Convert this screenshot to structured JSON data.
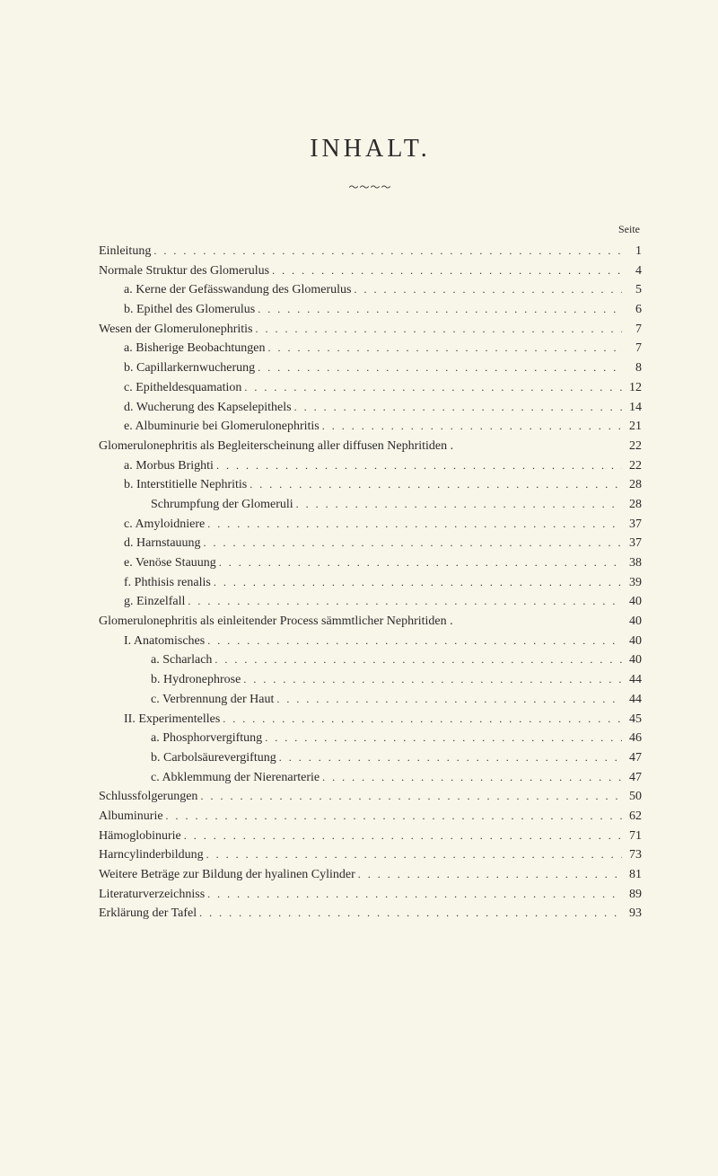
{
  "title": "INHALT.",
  "ornament": "～～～～",
  "page_header": "Seite",
  "colors": {
    "background": "#f8f5e9",
    "text": "#2a2a2a"
  },
  "typography": {
    "title_fontsize": 28,
    "body_fontsize": 14,
    "header_fontsize": 12,
    "font_family": "Georgia, Times New Roman, serif"
  },
  "entries": [
    {
      "label": "Einleitung",
      "page": "1",
      "indent": 0
    },
    {
      "label": "Normale Struktur des Glomerulus",
      "page": "4",
      "indent": 0
    },
    {
      "label": "a. Kerne der Gefässwandung des Glomerulus",
      "page": "5",
      "indent": 1
    },
    {
      "label": "b. Epithel des Glomerulus",
      "page": "6",
      "indent": 1
    },
    {
      "label": "Wesen der Glomerulonephritis",
      "page": "7",
      "indent": 0
    },
    {
      "label": "a. Bisherige Beobachtungen",
      "page": "7",
      "indent": 1
    },
    {
      "label": "b. Capillarkernwucherung",
      "page": "8",
      "indent": 1
    },
    {
      "label": "c. Epitheldesquamation",
      "page": "12",
      "indent": 1
    },
    {
      "label": "d. Wucherung des Kapselepithels",
      "page": "14",
      "indent": 1
    },
    {
      "label": "e. Albuminurie bei Glomerulonephritis",
      "page": "21",
      "indent": 1
    },
    {
      "label": "Glomerulonephritis als Begleiterscheinung aller diffusen Nephritiden .",
      "page": "22",
      "indent": 0,
      "nodots": true
    },
    {
      "label": "a. Morbus Brighti",
      "page": "22",
      "indent": 1
    },
    {
      "label": "b. Interstitielle Nephritis",
      "page": "28",
      "indent": 1
    },
    {
      "label": "Schrumpfung der Glomeruli",
      "page": "28",
      "indent": 2
    },
    {
      "label": "c. Amyloidniere",
      "page": "37",
      "indent": 1
    },
    {
      "label": "d. Harnstauung",
      "page": "37",
      "indent": 1
    },
    {
      "label": "e. Venöse Stauung",
      "page": "38",
      "indent": 1
    },
    {
      "label": "f. Phthisis renalis",
      "page": "39",
      "indent": 1
    },
    {
      "label": "g. Einzelfall",
      "page": "40",
      "indent": 1
    },
    {
      "label": "Glomerulonephritis als einleitender Process sämmtlicher Nephritiden .",
      "page": "40",
      "indent": 0,
      "nodots": true
    },
    {
      "label": "I. Anatomisches",
      "page": "40",
      "indent": 1
    },
    {
      "label": "a. Scharlach",
      "page": "40",
      "indent": 2
    },
    {
      "label": "b. Hydronephrose",
      "page": "44",
      "indent": 2
    },
    {
      "label": "c. Verbrennung der Haut",
      "page": "44",
      "indent": 2
    },
    {
      "label": "II. Experimentelles",
      "page": "45",
      "indent": 1
    },
    {
      "label": "a. Phosphorvergiftung",
      "page": "46",
      "indent": 2
    },
    {
      "label": "b. Carbolsäurevergiftung",
      "page": "47",
      "indent": 2
    },
    {
      "label": "c. Abklemmung der Nierenarterie",
      "page": "47",
      "indent": 2
    },
    {
      "label": "Schlussfolgerungen",
      "page": "50",
      "indent": 0
    },
    {
      "label": "Albuminurie",
      "page": "62",
      "indent": 0
    },
    {
      "label": "Hämoglobinurie",
      "page": "71",
      "indent": 0
    },
    {
      "label": "Harncylinderbildung",
      "page": "73",
      "indent": 0
    },
    {
      "label": "Weitere Beträge zur Bildung der hyalinen Cylinder",
      "page": "81",
      "indent": 0
    },
    {
      "label": "Literaturverzeichniss",
      "page": "89",
      "indent": 0
    },
    {
      "label": "Erklärung der Tafel",
      "page": "93",
      "indent": 0
    }
  ]
}
